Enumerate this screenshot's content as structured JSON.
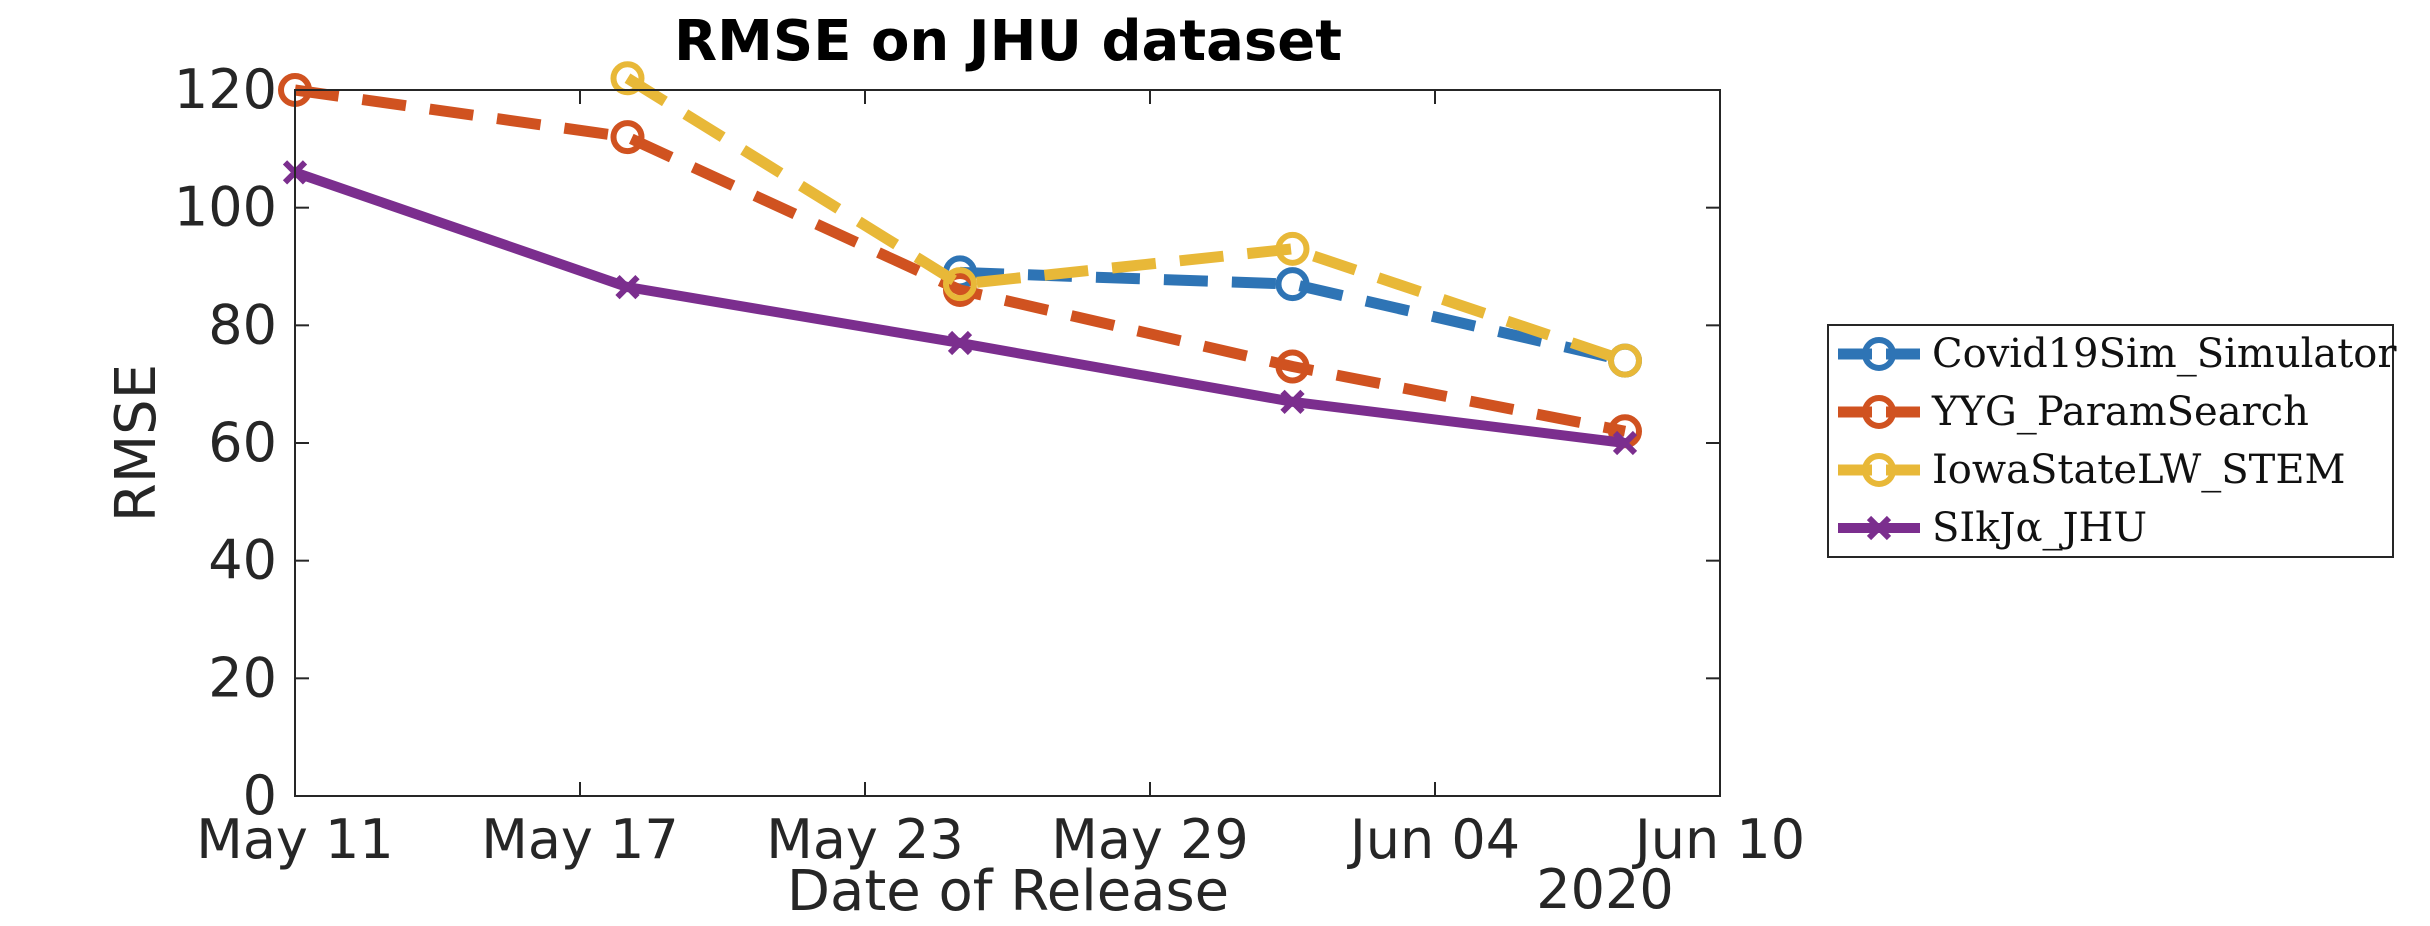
{
  "chart_data": {
    "type": "line",
    "title": "RMSE on JHU dataset",
    "xlabel": "Date of Release",
    "ylabel": "RMSE",
    "x_secondary_label": "2020",
    "x_ticks": [
      "May 11",
      "May 17",
      "May 23",
      "May 29",
      "Jun 04",
      "Jun 10"
    ],
    "y_ticks": [
      "0",
      "20",
      "40",
      "60",
      "80",
      "100",
      "120"
    ],
    "xlim": [
      "2020-05-11",
      "2020-06-10"
    ],
    "ylim": [
      0,
      120
    ],
    "grid": false,
    "legend_position": "outside-right",
    "series": [
      {
        "name": "Covid19Sim_Simulator",
        "color": "#2e74b5",
        "dash": "dashed",
        "marker": "circle",
        "x": [
          "2020-05-25",
          "2020-06-01",
          "2020-06-08"
        ],
        "y": [
          89,
          87,
          74
        ]
      },
      {
        "name": "YYG_ParamSearch",
        "color": "#d05220",
        "dash": "dashed",
        "marker": "circle",
        "x": [
          "2020-05-11",
          "2020-05-18",
          "2020-05-25",
          "2020-06-01",
          "2020-06-08"
        ],
        "y": [
          120,
          112,
          86,
          73,
          62
        ]
      },
      {
        "name": "IowaStateLW_STEM",
        "color": "#e8b838",
        "dash": "dashed",
        "marker": "circle",
        "x": [
          "2020-05-18",
          "2020-05-25",
          "2020-06-01",
          "2020-06-08"
        ],
        "y": [
          122,
          87,
          93,
          74
        ]
      },
      {
        "name": "SIkJα_JHU",
        "color": "#7b2e8e",
        "dash": "solid",
        "marker": "x",
        "x": [
          "2020-05-11",
          "2020-05-18",
          "2020-05-25",
          "2020-06-01",
          "2020-06-08"
        ],
        "y": [
          106,
          86.5,
          77,
          67,
          60
        ]
      }
    ]
  }
}
